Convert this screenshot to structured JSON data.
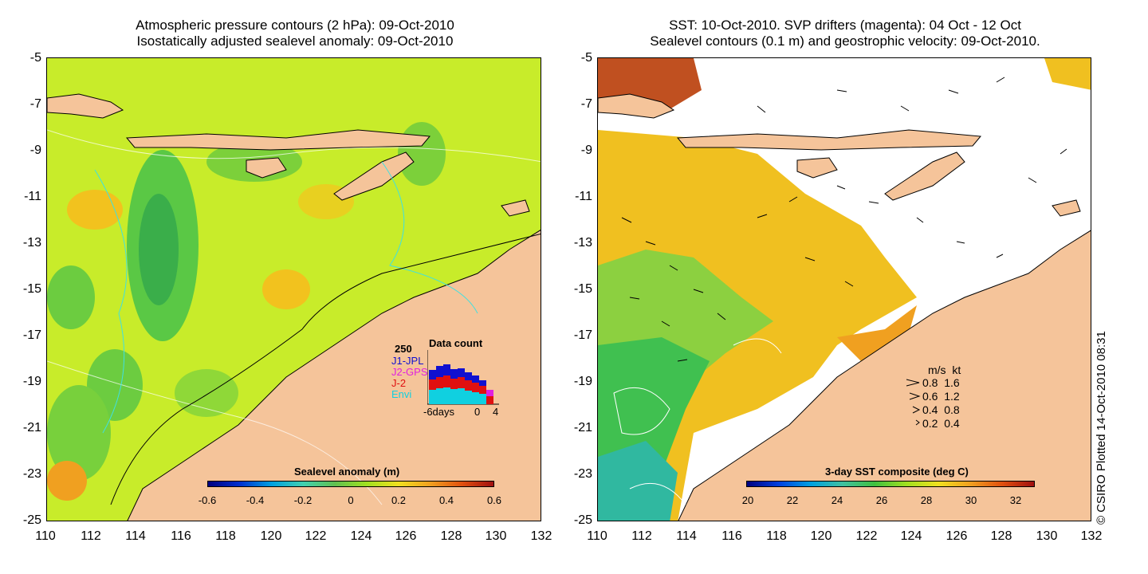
{
  "left_panel": {
    "title_line1": "Atmospheric pressure contours (2 hPa): 09-Oct-2010",
    "title_line2": "Isostatically adjusted sealevel anomaly: 09-Oct-2010",
    "colorbar_title": "Sealevel anomaly (m)",
    "colorbar_ticks": [
      "-0.6",
      "-0.4",
      "-0.2",
      "0",
      "0.2",
      "0.4",
      "0.6"
    ],
    "data_count": {
      "title": "Data count",
      "ymax": "250",
      "series_labels": [
        "J1-JPL",
        "J2-GPS",
        "J-2",
        "Envi"
      ],
      "series_colors": [
        "#1010d0",
        "#e020e0",
        "#e01010",
        "#10d0e0"
      ],
      "xlabel": "-6days",
      "xticks": [
        "0",
        "4"
      ]
    }
  },
  "right_panel": {
    "title_line1": "SST: 10-Oct-2010. SVP drifters (magenta): 04 Oct - 12 Oct",
    "title_line2": "Sealevel contours (0.1 m) and geostrophic velocity: 09-Oct-2010.",
    "colorbar_title": "3-day SST composite (deg C)",
    "colorbar_ticks": [
      "20",
      "22",
      "24",
      "26",
      "28",
      "30",
      "32"
    ],
    "velocity_legend": {
      "header": "m/s  kt",
      "rows": [
        "0.8  1.6",
        "0.6  1.2",
        "0.4  0.8",
        "0.2  0.4"
      ]
    }
  },
  "axes": {
    "y_ticks": [
      "-5",
      "-7",
      "-9",
      "-11",
      "-13",
      "-15",
      "-17",
      "-19",
      "-21",
      "-23",
      "-25"
    ],
    "x_ticks": [
      "110",
      "112",
      "114",
      "116",
      "118",
      "120",
      "122",
      "124",
      "126",
      "128",
      "130",
      "132"
    ]
  },
  "credit": "© CSIRO Plotted 14-Oct-2010 08:31",
  "colors": {
    "land": "#f5c49a",
    "sea_mean": "#c8ec2a",
    "sst_mean": "#f0c020"
  }
}
